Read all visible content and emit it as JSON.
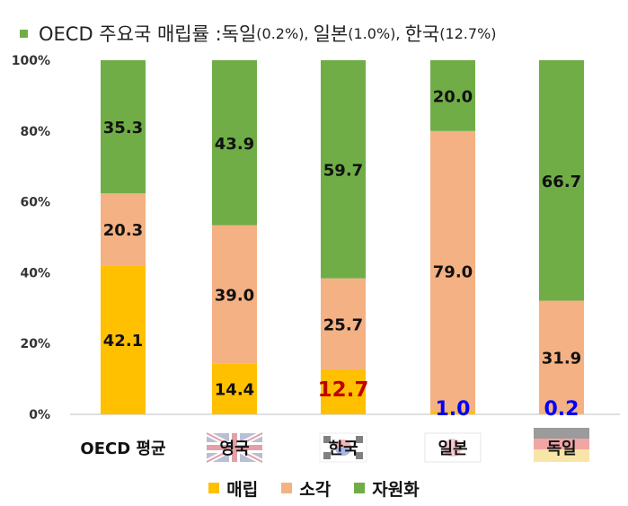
{
  "title": {
    "main": "OECD 주요국 매립률 : ",
    "parts": [
      {
        "name": "독일",
        "pct": "(0.2%),"
      },
      {
        "name": "일본",
        "pct": "(1.0%),"
      },
      {
        "name": "한국",
        "pct": "(12.7%)"
      }
    ]
  },
  "colors": {
    "landfill": "#ffc000",
    "incineration": "#f4b183",
    "recycling": "#70ad47",
    "title_bullet": "#70ad47",
    "korea_label": "#c00000",
    "small_label": "#0000ff",
    "axis_text": "#333333",
    "axis_line": "#bfbfbf"
  },
  "chart_data": {
    "type": "bar",
    "stacked": true,
    "categories": [
      "OECD 평균",
      "영국",
      "한국",
      "일본",
      "독일"
    ],
    "series": [
      {
        "name": "매립",
        "values": [
          42.1,
          14.4,
          12.7,
          1.0,
          0.2
        ],
        "labels": [
          "42.1",
          "14.4",
          "12.7",
          "1.0",
          "0.2"
        ]
      },
      {
        "name": "소각",
        "values": [
          20.3,
          39.0,
          25.7,
          79.0,
          31.9
        ],
        "labels": [
          "20.3",
          "39.0",
          "25.7",
          "79.0",
          "31.9"
        ]
      },
      {
        "name": "자원화",
        "values": [
          35.3,
          43.9,
          59.7,
          20.0,
          66.7
        ],
        "labels": [
          "35.3",
          "43.9",
          "59.7",
          "20.0",
          "66.7"
        ]
      }
    ],
    "ylim": [
      0,
      100
    ],
    "yticks": [
      0,
      20,
      40,
      60,
      80,
      100
    ],
    "ytick_labels": [
      "0%",
      "20%",
      "40%",
      "60%",
      "80%",
      "100%"
    ],
    "legend_position": "bottom",
    "flag_icons": [
      "",
      "uk-flag-icon",
      "korea-flag-icon",
      "japan-flag-icon",
      "germany-flag-icon"
    ]
  }
}
